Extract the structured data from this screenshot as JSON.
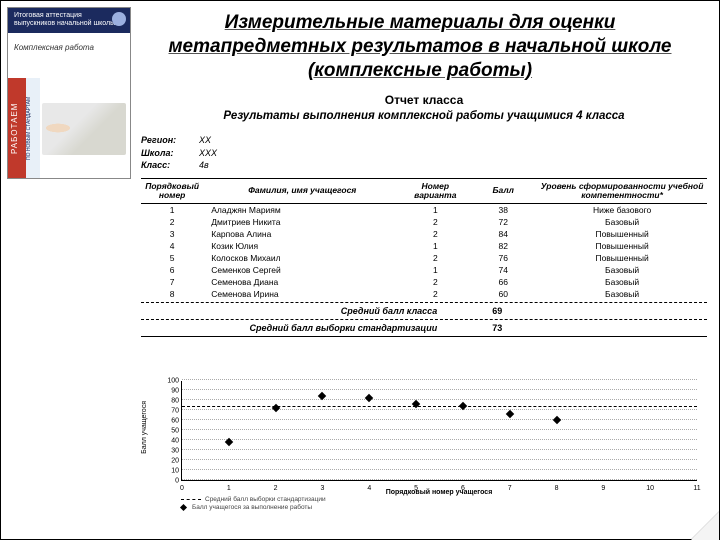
{
  "book": {
    "header": "Итоговая аттестация выпускников начальной школы",
    "italic": "Комплексная работа",
    "side": "РАБОТАЕМ",
    "sub": "ПО НОВЫМ СТАНДАРТАМ"
  },
  "title": "Измерительные материалы для оценки метапредметных результатов в начальной школе (комплексные работы)",
  "report": {
    "title": "Отчет класса",
    "sub": "Результаты выполнения комплексной работы учащимися 4 класса"
  },
  "meta": {
    "region_label": "Регион:",
    "region": "XX",
    "school_label": "Школа:",
    "school": "XXX",
    "class_label": "Класс:",
    "class": "4в"
  },
  "table": {
    "headers": [
      "Порядковый номер",
      "Фамилия, имя учащегося",
      "Номер варианта",
      "Балл",
      "Уровень сформированности учебной компетентности*"
    ],
    "col_widths": [
      "11%",
      "35%",
      "12%",
      "12%",
      "30%"
    ],
    "rows": [
      {
        "n": "1",
        "name": "Аладжян Мариям",
        "variant": "1",
        "score": "38",
        "level": "Ниже базового"
      },
      {
        "n": "2",
        "name": "Дмитриев Никита",
        "variant": "2",
        "score": "72",
        "level": "Базовый"
      },
      {
        "n": "3",
        "name": "Карпова Алина",
        "variant": "2",
        "score": "84",
        "level": "Повышенный"
      },
      {
        "n": "4",
        "name": "Козик Юлия",
        "variant": "1",
        "score": "82",
        "level": "Повышенный"
      },
      {
        "n": "5",
        "name": "Колосков Михаил",
        "variant": "2",
        "score": "76",
        "level": "Повышенный"
      },
      {
        "n": "6",
        "name": "Семенков Сергей",
        "variant": "1",
        "score": "74",
        "level": "Базовый"
      },
      {
        "n": "7",
        "name": "Семенова Диана",
        "variant": "2",
        "score": "66",
        "level": "Базовый"
      },
      {
        "n": "8",
        "name": "Семенова Ирина",
        "variant": "2",
        "score": "60",
        "level": "Базовый"
      }
    ]
  },
  "summary": {
    "avg_class_label": "Средний балл класса",
    "avg_class": "69",
    "avg_std_label": "Средний балл выборки стандартизации",
    "avg_std": "73"
  },
  "chart": {
    "type": "scatter",
    "ylabel": "Балл учащегося",
    "xlabel": "Порядковый номер учащегося",
    "ylim": [
      0,
      100
    ],
    "yticks": [
      0,
      10,
      20,
      30,
      40,
      50,
      60,
      70,
      80,
      90,
      100
    ],
    "xlim": [
      0,
      11
    ],
    "xticks": [
      0,
      1,
      2,
      3,
      4,
      5,
      6,
      7,
      8,
      9,
      10,
      11
    ],
    "ref_value": 73,
    "grid_color": "#aaaaaa",
    "point_color": "#000000",
    "points": [
      {
        "x": 1,
        "y": 38
      },
      {
        "x": 2,
        "y": 72
      },
      {
        "x": 3,
        "y": 84
      },
      {
        "x": 4,
        "y": 82
      },
      {
        "x": 5,
        "y": 76
      },
      {
        "x": 6,
        "y": 74
      },
      {
        "x": 7,
        "y": 66
      },
      {
        "x": 8,
        "y": 60
      }
    ],
    "legend": {
      "line": "Средний балл выборки стандартизации",
      "point": "Балл учащегося за выполнение работы"
    }
  }
}
